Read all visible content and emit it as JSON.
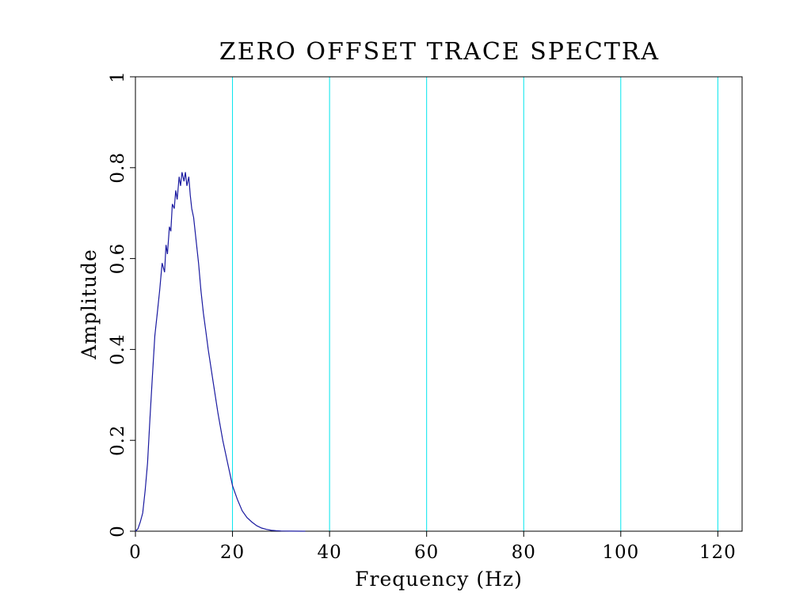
{
  "chart_data": {
    "type": "line",
    "title": "ZERO OFFSET TRACE SPECTRA",
    "xlabel": "Frequency (Hz)",
    "ylabel": "Amplitude",
    "xlim": [
      0,
      125
    ],
    "ylim": [
      0,
      1
    ],
    "x_ticks": [
      0,
      20,
      40,
      60,
      80,
      100,
      120
    ],
    "x_tick_labels": [
      "0",
      "20",
      "40",
      "60",
      "80",
      "100",
      "120"
    ],
    "y_ticks": [
      0,
      0.2,
      0.4,
      0.6,
      0.8,
      1
    ],
    "y_tick_labels": [
      "0",
      "0.2",
      "0.4",
      "0.6",
      "0.8",
      "1"
    ],
    "grid": "vertical",
    "grid_color": "#00e5ee",
    "line_color": "#1a1aa0",
    "series": [
      {
        "x": [
          0,
          0.5,
          1,
          1.5,
          2,
          2.5,
          3,
          3.5,
          4,
          4.5,
          5,
          5.5,
          6,
          6.3,
          6.6,
          7,
          7.3,
          7.6,
          8,
          8.3,
          8.6,
          9,
          9.3,
          9.6,
          10,
          10.3,
          10.6,
          11,
          11.3,
          11.6,
          12,
          12.5,
          13,
          13.5,
          14,
          14.5,
          15,
          16,
          17,
          18,
          19,
          20,
          21,
          22,
          23,
          24,
          25,
          26,
          27,
          28,
          29,
          30,
          32,
          35
        ],
        "y": [
          0,
          0.005,
          0.02,
          0.04,
          0.09,
          0.15,
          0.25,
          0.34,
          0.43,
          0.48,
          0.53,
          0.59,
          0.57,
          0.63,
          0.61,
          0.67,
          0.66,
          0.72,
          0.71,
          0.75,
          0.73,
          0.78,
          0.76,
          0.79,
          0.77,
          0.79,
          0.76,
          0.78,
          0.74,
          0.71,
          0.69,
          0.64,
          0.59,
          0.53,
          0.48,
          0.44,
          0.4,
          0.33,
          0.26,
          0.2,
          0.15,
          0.1,
          0.07,
          0.045,
          0.03,
          0.02,
          0.012,
          0.007,
          0.004,
          0.002,
          0.001,
          0.0005,
          0.0002,
          0
        ]
      }
    ]
  }
}
